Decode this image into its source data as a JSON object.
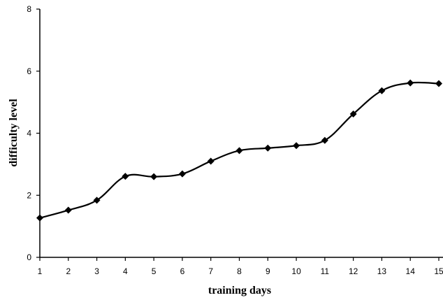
{
  "chart_data": {
    "type": "line",
    "title": "",
    "xlabel": "training days",
    "ylabel": "difficulty level",
    "x": [
      1,
      2,
      3,
      4,
      5,
      6,
      7,
      8,
      9,
      10,
      11,
      12,
      13,
      14,
      15
    ],
    "series": [
      {
        "values": [
          1.27,
          1.52,
          1.84,
          2.61,
          2.6,
          2.69,
          3.1,
          3.44,
          3.52,
          3.6,
          3.77,
          4.62,
          5.37,
          5.62,
          5.6
        ]
      }
    ],
    "xlim": [
      1,
      15
    ],
    "ylim": [
      0,
      8
    ],
    "x_ticks": [
      "1",
      "2",
      "3",
      "4",
      "5",
      "6",
      "7",
      "8",
      "9",
      "10",
      "11",
      "12",
      "13",
      "14",
      "15"
    ],
    "y_ticks": [
      "0",
      "2",
      "4",
      "6",
      "8"
    ],
    "grid": false,
    "legend": "none",
    "line_color": "#000000",
    "marker": "diamond"
  }
}
